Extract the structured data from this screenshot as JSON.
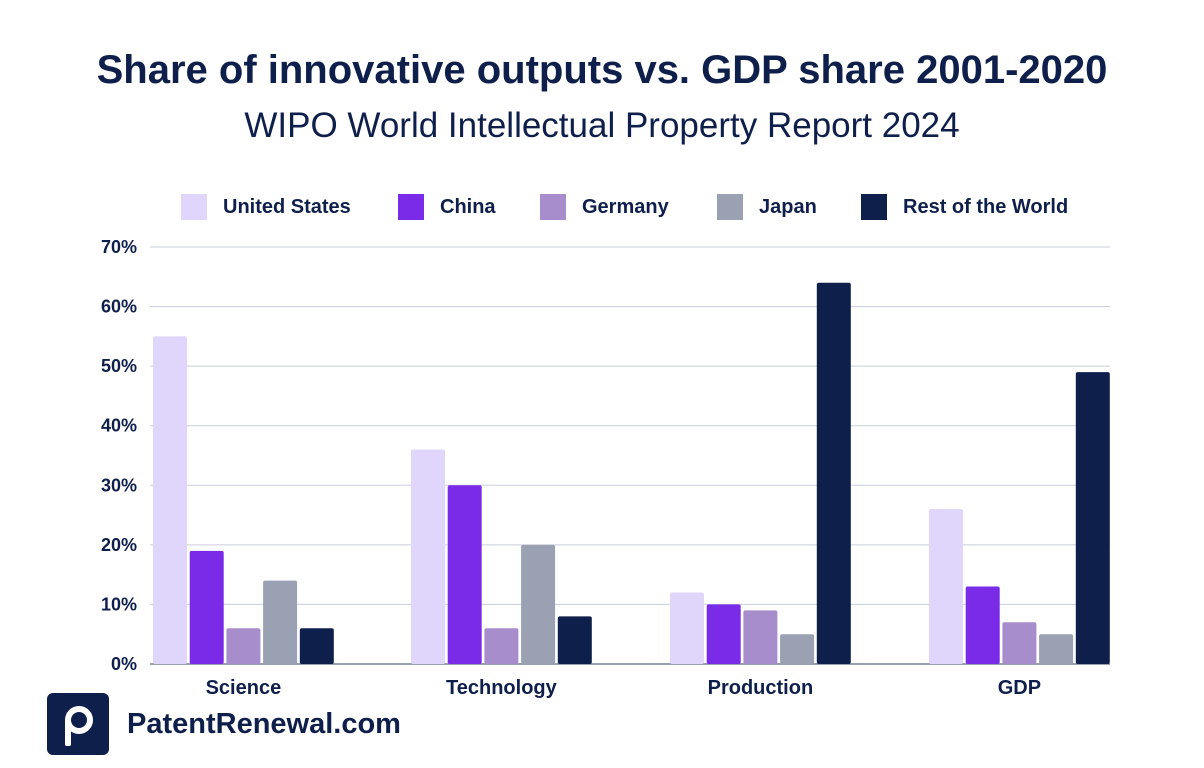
{
  "chart_data": {
    "type": "bar",
    "title": "Share of innovative outputs vs. GDP share 2001-2020",
    "subtitle": "WIPO World Intellectual Property Report 2024",
    "categories": [
      "Science",
      "Technology",
      "Production",
      "GDP"
    ],
    "series": [
      {
        "name": "United States",
        "color": "#e0d6fc",
        "values": [
          55,
          36,
          12,
          26
        ]
      },
      {
        "name": "China",
        "color": "#7a2be8",
        "values": [
          19,
          30,
          10,
          13
        ]
      },
      {
        "name": "Germany",
        "color": "#a78dcc",
        "values": [
          6,
          6,
          9,
          7
        ]
      },
      {
        "name": "Japan",
        "color": "#99a1b2",
        "values": [
          14,
          20,
          5,
          5
        ]
      },
      {
        "name": "Rest of the World",
        "color": "#0d1f4a",
        "values": [
          6,
          8,
          64,
          49
        ]
      }
    ],
    "yticks": [
      "0%",
      "10%",
      "20%",
      "30%",
      "40%",
      "50%",
      "60%",
      "70%"
    ],
    "ylim": [
      0,
      70
    ],
    "xlabel": "",
    "ylabel": "",
    "legend_position": "top",
    "grid": true
  },
  "brand": {
    "name": "PatentRenewal.com",
    "logo_icon": "p-letter-icon"
  }
}
